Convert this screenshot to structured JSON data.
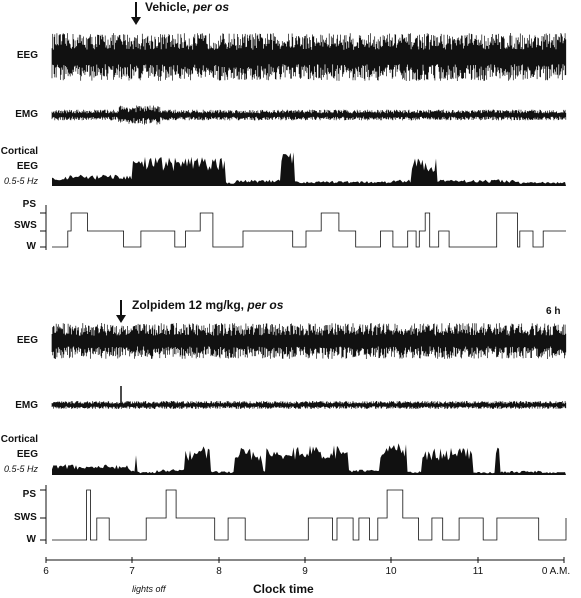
{
  "panels": [
    {
      "title_main": "Vehicle, ",
      "title_route": "per os",
      "labels": {
        "eeg": "EEG",
        "emg": "EMG",
        "cortical_line1": "Cortical",
        "cortical_line2": "EEG",
        "band": "0.5-5 Hz",
        "ps": "PS",
        "sws": "SWS",
        "w": "W"
      },
      "administration_time": 7.0
    },
    {
      "title_main": "Zolpidem 12 mg/kg, ",
      "title_route": "per os",
      "duration_label": "6 h",
      "labels": {
        "eeg": "EEG",
        "emg": "EMG",
        "cortical_line1": "Cortical",
        "cortical_line2": "EEG",
        "band": "0.5-5 Hz",
        "ps": "PS",
        "sws": "SWS",
        "w": "W"
      },
      "administration_time": 6.85
    }
  ],
  "axis": {
    "ticks": [
      "6",
      "7",
      "8",
      "9",
      "10",
      "11",
      "0 A.M."
    ],
    "xlabel": "Clock time",
    "note": "lights off"
  },
  "colors": {
    "trace": "#111111",
    "background": "#ffffff"
  }
}
